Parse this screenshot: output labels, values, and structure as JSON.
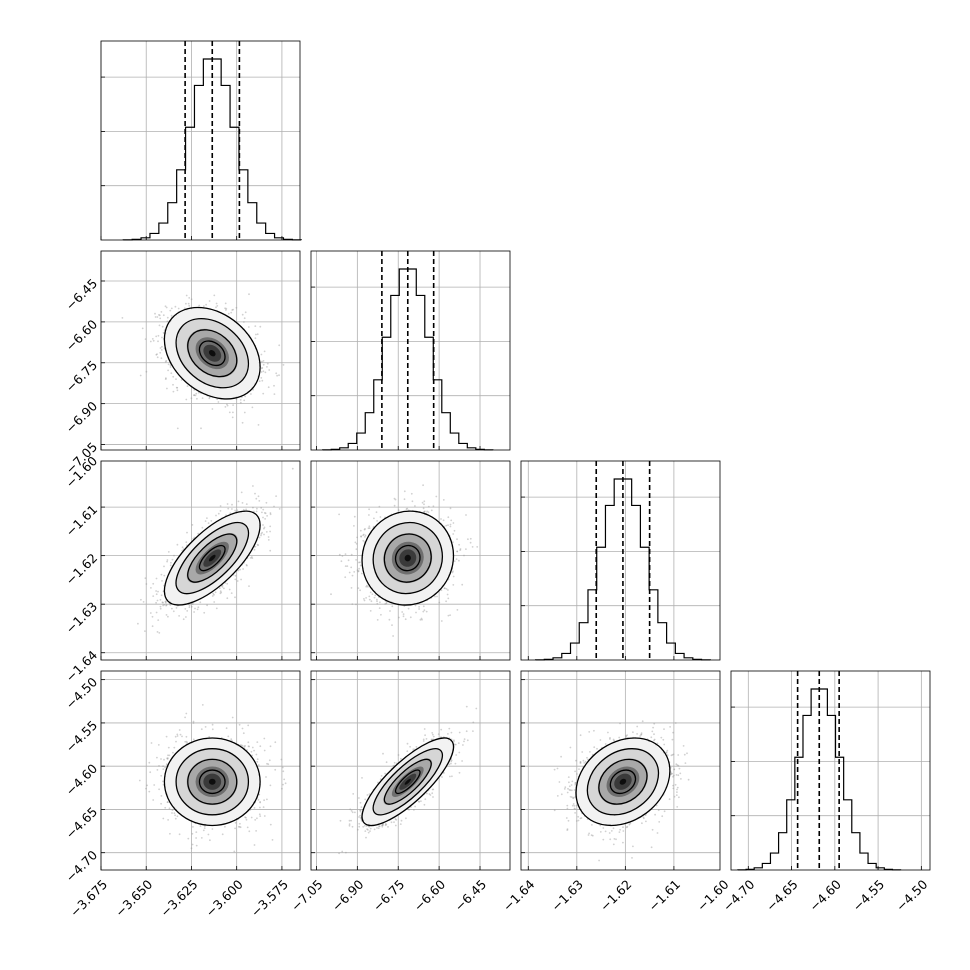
{
  "chart_data": {
    "type": "corner",
    "title": "",
    "grid": true,
    "parameters": [
      {
        "index": 0,
        "range": [
          -3.675,
          -3.565
        ],
        "ticks": [
          -3.675,
          -3.65,
          -3.625,
          -3.6,
          -3.575
        ],
        "tick_labels": [
          "−3.675",
          "−3.650",
          "−3.625",
          "−3.600",
          "−3.575"
        ],
        "mean": -3.6135,
        "sigma": 0.0123,
        "quantiles": [
          -3.6285,
          -3.6135,
          -3.5985
        ]
      },
      {
        "index": 1,
        "range": [
          -7.07,
          -6.34
        ],
        "ticks": [
          -7.05,
          -6.9,
          -6.75,
          -6.6,
          -6.45
        ],
        "tick_labels": [
          "−7.05",
          "−6.90",
          "−6.75",
          "−6.60",
          "−6.45"
        ],
        "mean": -6.715,
        "sigma": 0.078,
        "quantiles": [
          -6.81,
          -6.715,
          -6.62
        ]
      },
      {
        "index": 2,
        "range": [
          -1.6415,
          -1.6005
        ],
        "ticks": [
          -1.64,
          -1.63,
          -1.62,
          -1.61,
          -1.6
        ],
        "tick_labels": [
          "−1.64",
          "−1.63",
          "−1.62",
          "−1.61",
          "−1.60"
        ],
        "mean": -1.6205,
        "sigma": 0.0045,
        "quantiles": [
          -1.626,
          -1.6205,
          -1.615
        ]
      },
      {
        "index": 3,
        "range": [
          -4.72,
          -4.49
        ],
        "ticks": [
          -4.7,
          -4.65,
          -4.6,
          -4.55,
          -4.5
        ],
        "tick_labels": [
          "−4.70",
          "−4.65",
          "−4.60",
          "−4.55",
          "−4.50"
        ],
        "mean": -4.618,
        "sigma": 0.0235,
        "quantiles": [
          -4.643,
          -4.618,
          -4.595
        ]
      }
    ],
    "correlations": [
      {
        "pair": [
          1,
          0
        ],
        "rho": -0.3
      },
      {
        "pair": [
          2,
          0
        ],
        "rho": 0.7
      },
      {
        "pair": [
          2,
          1
        ],
        "rho": 0.05
      },
      {
        "pair": [
          3,
          0
        ],
        "rho": 0.0
      },
      {
        "pair": [
          3,
          1
        ],
        "rho": 0.8
      },
      {
        "pair": [
          3,
          2
        ],
        "rho": 0.25
      }
    ],
    "contour_levels_sigma": [
      0.5,
      1.0,
      1.5,
      2.0
    ],
    "histogram_bins": 20,
    "samples_shown_as": "scatter points outside outer contour, shaded 2D histogram inside"
  }
}
